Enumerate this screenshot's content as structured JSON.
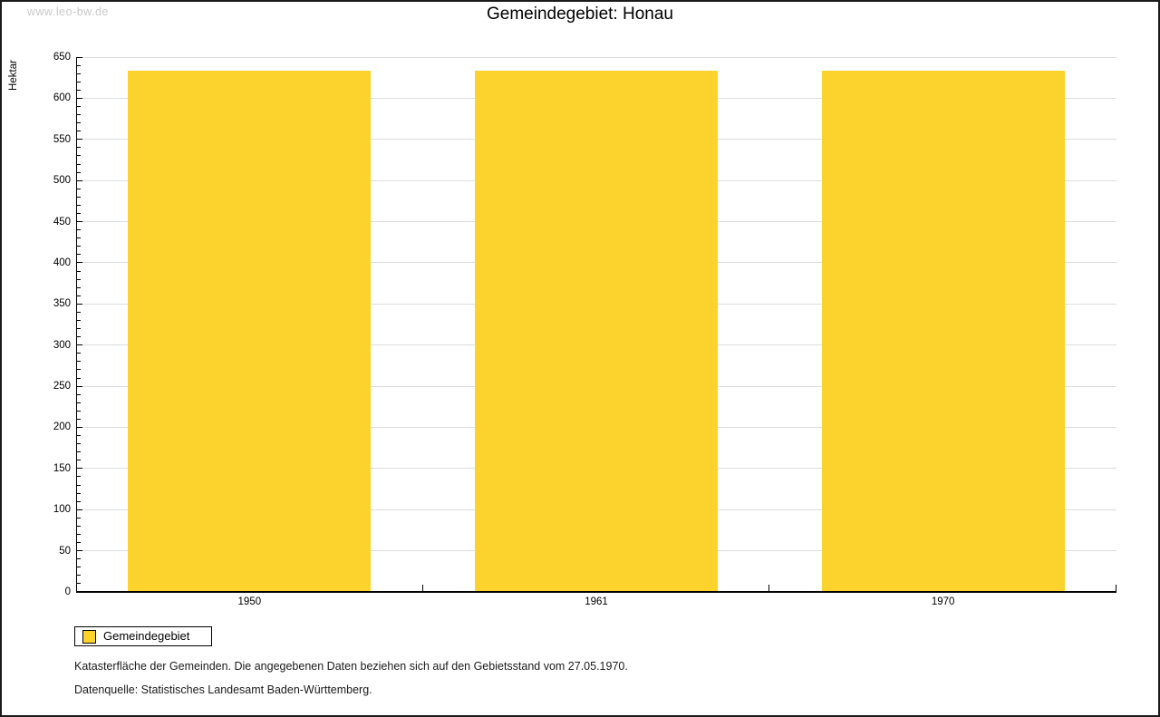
{
  "watermark": "www.leo-bw.de",
  "header": {
    "title": "Gemeindegebiet: Honau"
  },
  "chart_data": {
    "type": "bar",
    "title": "Gemeindegebiet: Honau",
    "categories": [
      "1950",
      "1961",
      "1970"
    ],
    "series": [
      {
        "name": "Gemeindegebiet",
        "values": [
          633,
          634,
          634
        ]
      }
    ],
    "xlabel": "",
    "ylabel": "Hektar",
    "ylim": [
      0,
      650
    ],
    "yticks": [
      0,
      50,
      100,
      150,
      200,
      250,
      300,
      350,
      400,
      450,
      500,
      550,
      600,
      650
    ],
    "minor_tick_step": 10,
    "grid": "horizontal-major-only",
    "legend_position": "bottom-left",
    "bar_color": "#FCD32C",
    "grid_color": "#dcdcdc",
    "axis_color": "#000000"
  },
  "legend": {
    "items": [
      {
        "label": "Gemeindegebiet",
        "color": "#FCD32C"
      }
    ]
  },
  "footnotes": [
    "Katasterfläche der Gemeinden. Die angegebenen Daten beziehen sich auf den Gebietsstand vom 27.05.1970.",
    "Datenquelle: Statistisches Landesamt Baden-Württemberg."
  ]
}
